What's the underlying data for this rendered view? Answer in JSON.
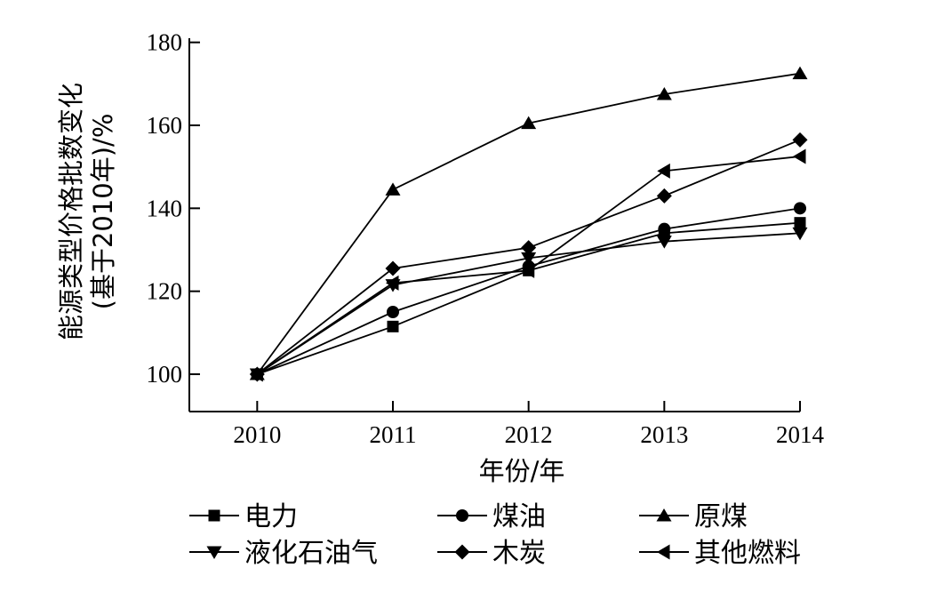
{
  "chart_data": {
    "type": "line",
    "title": "",
    "xlabel": "年份/年",
    "ylabel_line1": "能源类型价格批数变化",
    "ylabel_line2": "(基于2010年)/%",
    "x": [
      2010,
      2011,
      2012,
      2013,
      2014
    ],
    "x_tick_labels": [
      "2010",
      "2011",
      "2012",
      "2013",
      "2014"
    ],
    "xlim": [
      2009.5,
      2014.0
    ],
    "ylim": [
      91,
      181
    ],
    "y_ticks": [
      100,
      120,
      140,
      160,
      180
    ],
    "y_tick_labels": [
      "100",
      "120",
      "140",
      "160",
      "180"
    ],
    "grid": false,
    "legend_position": "bottom",
    "series": [
      {
        "name": "电力",
        "marker": "square",
        "values": [
          100,
          111.5,
          125,
          134,
          136.5
        ]
      },
      {
        "name": "煤油",
        "marker": "circle",
        "values": [
          100,
          115,
          126,
          135,
          140
        ]
      },
      {
        "name": "原煤",
        "marker": "triangle-up",
        "values": [
          100,
          144.5,
          160.5,
          167.5,
          172.5
        ]
      },
      {
        "name": "液化石油气",
        "marker": "triangle-down",
        "values": [
          100,
          121.5,
          128,
          132,
          134
        ]
      },
      {
        "name": "木炭",
        "marker": "diamond",
        "values": [
          100,
          125.5,
          130.5,
          143,
          156.5
        ]
      },
      {
        "name": "其他燃料",
        "marker": "triangle-left",
        "values": [
          100,
          122,
          125,
          149,
          152.5
        ]
      }
    ]
  }
}
